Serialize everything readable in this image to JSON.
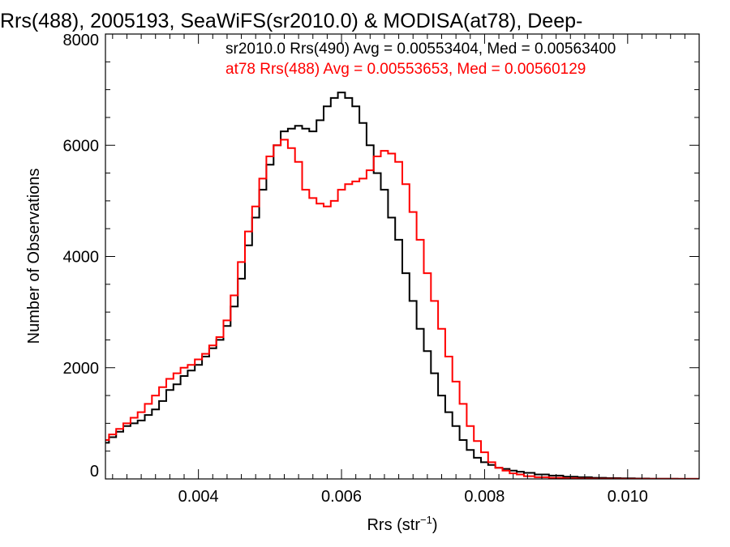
{
  "chart_data": {
    "type": "line",
    "title": "Rrs(488), 2005193, SeaWiFS(sr2010.0) & MODISA(at78), Deep-",
    "xlabel": "Rrs (str",
    "xlabel_sup": "−1",
    "xlabel_end": ")",
    "ylabel": "Number of Observations",
    "xlim": [
      0.0027,
      0.011
    ],
    "ylim": [
      0,
      8000
    ],
    "xticks": [
      0.004,
      0.006,
      0.008,
      0.01
    ],
    "xtick_labels": [
      "0.004",
      "0.006",
      "0.008",
      "0.010"
    ],
    "yticks": [
      0,
      2000,
      4000,
      6000,
      8000
    ],
    "ytick_labels": [
      "0",
      "2000",
      "4000",
      "6000",
      "8000"
    ],
    "grid": false,
    "legend_position": "top-right",
    "series": [
      {
        "name": "sr2010.0 Rrs(490) Avg = 0.00553404, Med = 0.00563400",
        "color": "#000000",
        "step": true,
        "x": [
          0.0027,
          0.0028,
          0.0029,
          0.003,
          0.0031,
          0.0032,
          0.0033,
          0.0034,
          0.0035,
          0.0036,
          0.0037,
          0.0038,
          0.0039,
          0.004,
          0.0041,
          0.0042,
          0.0043,
          0.0044,
          0.0045,
          0.0046,
          0.0047,
          0.0048,
          0.0049,
          0.005,
          0.0051,
          0.0052,
          0.0053,
          0.0054,
          0.0055,
          0.0056,
          0.0057,
          0.0058,
          0.0059,
          0.006,
          0.0061,
          0.0062,
          0.0063,
          0.0064,
          0.0065,
          0.0066,
          0.0067,
          0.0068,
          0.0069,
          0.007,
          0.0071,
          0.0072,
          0.0073,
          0.0074,
          0.0075,
          0.0076,
          0.0077,
          0.0078,
          0.0079,
          0.008,
          0.0081,
          0.0082,
          0.0083,
          0.0084,
          0.0085,
          0.0086,
          0.0088,
          0.009,
          0.0092,
          0.0094,
          0.0096,
          0.0098,
          0.01,
          0.0102,
          0.0104,
          0.0106,
          0.0108,
          0.011
        ],
        "y": [
          650,
          750,
          850,
          950,
          1000,
          1050,
          1150,
          1250,
          1400,
          1600,
          1700,
          1850,
          1950,
          2050,
          2200,
          2350,
          2500,
          2750,
          3100,
          3600,
          4200,
          4700,
          5200,
          5650,
          6000,
          6250,
          6300,
          6350,
          6300,
          6250,
          6450,
          6700,
          6850,
          6950,
          6850,
          6700,
          6400,
          6000,
          5500,
          5200,
          4700,
          4300,
          3700,
          3200,
          2700,
          2300,
          1900,
          1500,
          1200,
          950,
          700,
          520,
          380,
          300,
          250,
          200,
          180,
          150,
          130,
          110,
          80,
          60,
          40,
          30,
          20,
          15,
          10,
          8,
          5,
          3,
          2,
          2
        ]
      },
      {
        "name": "at78 Rrs(488) Avg = 0.00553653, Med = 0.00560129",
        "color": "#ff0000",
        "step": true,
        "x": [
          0.0027,
          0.0028,
          0.0029,
          0.003,
          0.0031,
          0.0032,
          0.0033,
          0.0034,
          0.0035,
          0.0036,
          0.0037,
          0.0038,
          0.0039,
          0.004,
          0.0041,
          0.0042,
          0.0043,
          0.0044,
          0.0045,
          0.0046,
          0.0047,
          0.0048,
          0.0049,
          0.005,
          0.0051,
          0.0052,
          0.0053,
          0.0054,
          0.0055,
          0.0056,
          0.0057,
          0.0058,
          0.0059,
          0.006,
          0.0061,
          0.0062,
          0.0063,
          0.0064,
          0.0065,
          0.0066,
          0.0067,
          0.0068,
          0.0069,
          0.007,
          0.0071,
          0.0072,
          0.0073,
          0.0074,
          0.0075,
          0.0076,
          0.0077,
          0.0078,
          0.0079,
          0.008,
          0.0081,
          0.0082,
          0.0083,
          0.0084,
          0.0085,
          0.0086,
          0.0088,
          0.009,
          0.0092,
          0.0094,
          0.0096,
          0.0098,
          0.01,
          0.0102,
          0.0104,
          0.0106,
          0.0108,
          0.011
        ],
        "y": [
          700,
          800,
          900,
          1000,
          1100,
          1200,
          1350,
          1500,
          1650,
          1800,
          1900,
          2000,
          2050,
          2150,
          2250,
          2400,
          2550,
          2850,
          3300,
          3900,
          4450,
          4900,
          5400,
          5800,
          6000,
          6100,
          5950,
          5700,
          5200,
          5050,
          4950,
          4900,
          5000,
          5200,
          5300,
          5350,
          5400,
          5550,
          5800,
          5900,
          5850,
          5700,
          5300,
          4800,
          4300,
          3700,
          3200,
          2700,
          2200,
          1750,
          1350,
          950,
          680,
          480,
          300,
          200,
          150,
          100,
          80,
          50,
          30,
          20,
          10,
          8,
          5,
          3,
          2,
          2,
          1,
          1,
          1,
          1
        ]
      }
    ]
  }
}
